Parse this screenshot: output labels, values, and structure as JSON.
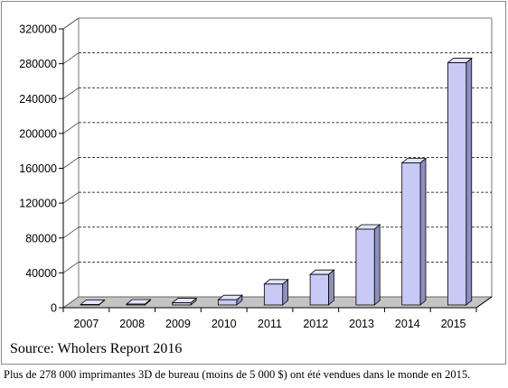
{
  "chart_data": {
    "type": "bar",
    "style": "3d",
    "categories": [
      "2007",
      "2008",
      "2009",
      "2010",
      "2011",
      "2012",
      "2013",
      "2014",
      "2015"
    ],
    "values": [
      120,
      1000,
      2500,
      6000,
      24000,
      35000,
      87000,
      163000,
      278000
    ],
    "ylim": [
      0,
      320000
    ],
    "yticks": [
      "0",
      "40000",
      "80000",
      "120000",
      "160000",
      "200000",
      "240000",
      "280000",
      "320000"
    ],
    "grid": true,
    "legend": "none",
    "colors": {
      "bar_front": "#c9c9f6",
      "bar_side": "#8f8fbf",
      "bar_top": "#e3e3fb",
      "floor": "#c4c4c4"
    }
  },
  "source": "Source: Wholers Report 2016",
  "caption": "Plus de 278 000 imprimantes 3D de bureau (moins de 5 000 $) ont été vendues dans le monde en 2015."
}
